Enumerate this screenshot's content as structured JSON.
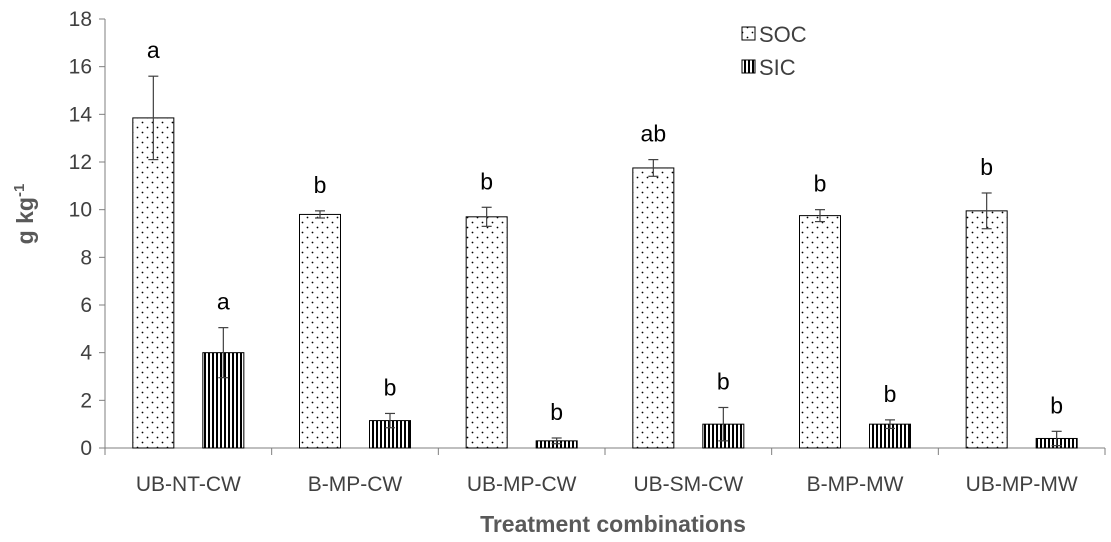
{
  "chart_data": {
    "type": "bar",
    "xlabel": "Treatment combinations",
    "ylabel": "g kg",
    "ylabel_superscript": "-1",
    "ylim": [
      0,
      18
    ],
    "yticks": [
      0,
      2,
      4,
      6,
      8,
      10,
      12,
      14,
      16,
      18
    ],
    "grid": false,
    "legend_position": "top-right",
    "categories": [
      "UB-NT-CW",
      "B-MP-CW",
      "UB-MP-CW",
      "UB-SM-CW",
      "B-MP-MW",
      "UB-MP-MW"
    ],
    "series": [
      {
        "name": "SOC",
        "pattern": "dots",
        "values": [
          13.85,
          9.8,
          9.7,
          11.75,
          9.75,
          9.95
        ],
        "errors": [
          1.75,
          0.15,
          0.4,
          0.35,
          0.25,
          0.75
        ],
        "significance": [
          "a",
          "b",
          "b",
          "ab",
          "b",
          "b"
        ]
      },
      {
        "name": "SIC",
        "pattern": "vertical-stripes",
        "values": [
          4.0,
          1.15,
          0.3,
          1.0,
          1.0,
          0.4
        ],
        "errors": [
          1.05,
          0.3,
          0.12,
          0.7,
          0.18,
          0.3
        ],
        "significance": [
          "a",
          "b",
          "b",
          "b",
          "b",
          "b"
        ]
      }
    ]
  }
}
